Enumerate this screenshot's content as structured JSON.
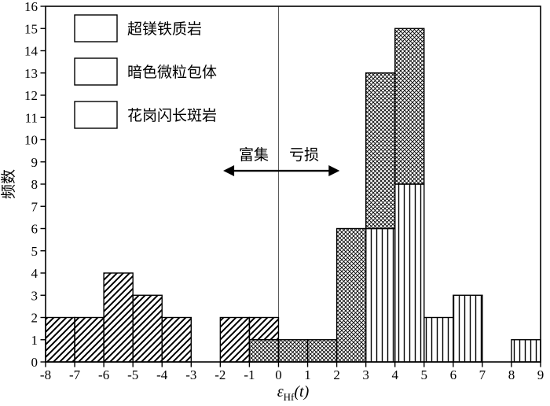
{
  "figure": {
    "ylabel": "频数",
    "xlabel": {
      "epsilon": "ε",
      "subscript": "Hf",
      "arg": "(t)"
    },
    "annotation": {
      "enriched": "富集",
      "depleted": "亏损",
      "arrow": {
        "x_from": -1.9,
        "x_to": 2.1,
        "y": 8.6
      }
    },
    "legend": [
      {
        "label": "超镁铁质岩",
        "pattern": "diagonal"
      },
      {
        "label": "暗色微粒包体",
        "pattern": "crosshatch"
      },
      {
        "label": "花岗闪长斑岩",
        "pattern": "vertical"
      }
    ],
    "colors": {
      "ink": "#000000",
      "background": "#ffffff",
      "zero_line": "#555555"
    }
  },
  "chart_data": {
    "type": "bar",
    "subtype": "stacked-histogram",
    "title": "",
    "xlabel": "εHf(t)",
    "ylabel": "频数",
    "xlim": [
      -8,
      9
    ],
    "ylim": [
      0,
      16
    ],
    "xticks": [
      -8,
      -7,
      -6,
      -5,
      -4,
      -3,
      -2,
      -1,
      0,
      1,
      2,
      3,
      4,
      5,
      6,
      7,
      8,
      9
    ],
    "yticks": [
      0,
      1,
      2,
      3,
      4,
      5,
      6,
      7,
      8,
      9,
      10,
      11,
      12,
      13,
      14,
      15,
      16
    ],
    "bin_width": 1,
    "zero_line_x": 0,
    "grid": false,
    "legend_position": "top-left",
    "stack_note": "series listed bottom-to-top",
    "series": [
      {
        "name": "花岗闪长斑岩",
        "pattern": "vertical",
        "bins": [
          {
            "x": 3,
            "count": 6
          },
          {
            "x": 4,
            "count": 8
          },
          {
            "x": 5,
            "count": 2
          },
          {
            "x": 6,
            "count": 3
          },
          {
            "x": 8,
            "count": 1
          }
        ]
      },
      {
        "name": "暗色微粒包体",
        "pattern": "crosshatch",
        "bins": [
          {
            "x": -1,
            "count": 1
          },
          {
            "x": 0,
            "count": 1
          },
          {
            "x": 1,
            "count": 1
          },
          {
            "x": 2,
            "count": 6
          },
          {
            "x": 3,
            "count": 7
          },
          {
            "x": 4,
            "count": 7
          }
        ]
      },
      {
        "name": "超镁铁质岩",
        "pattern": "diagonal",
        "bins": [
          {
            "x": -8,
            "count": 2
          },
          {
            "x": -7,
            "count": 2
          },
          {
            "x": -6,
            "count": 4
          },
          {
            "x": -5,
            "count": 3
          },
          {
            "x": -4,
            "count": 2
          },
          {
            "x": -2,
            "count": 2
          },
          {
            "x": -1,
            "count": 1
          }
        ]
      }
    ]
  }
}
